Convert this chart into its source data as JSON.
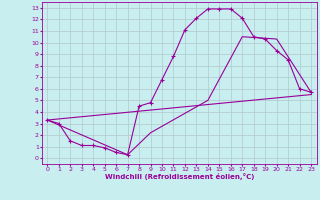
{
  "xlabel": "Windchill (Refroidissement éolien,°C)",
  "xlim": [
    -0.5,
    23.5
  ],
  "ylim": [
    -0.5,
    13.5
  ],
  "xticks": [
    0,
    1,
    2,
    3,
    4,
    5,
    6,
    7,
    8,
    9,
    10,
    11,
    12,
    13,
    14,
    15,
    16,
    17,
    18,
    19,
    20,
    21,
    22,
    23
  ],
  "yticks": [
    0,
    1,
    2,
    3,
    4,
    5,
    6,
    7,
    8,
    9,
    10,
    11,
    12,
    13
  ],
  "bg_color": "#c8eef0",
  "line_color": "#990099",
  "grid_color": "#b0c8cc",
  "line1_x": [
    0,
    1,
    2,
    3,
    4,
    5,
    6,
    7,
    8,
    9,
    10,
    11,
    12,
    13,
    14,
    15,
    16,
    17,
    18,
    19,
    20,
    21,
    22,
    23
  ],
  "line1_y": [
    3.3,
    3.0,
    1.5,
    1.1,
    1.1,
    0.9,
    0.5,
    0.3,
    4.5,
    4.8,
    6.8,
    8.8,
    11.1,
    12.1,
    12.9,
    12.9,
    12.9,
    12.1,
    10.5,
    10.3,
    9.3,
    8.5,
    6.0,
    5.7
  ],
  "line2_x": [
    0,
    23
  ],
  "line2_y": [
    3.3,
    5.5
  ],
  "line3_x": [
    0,
    7,
    9,
    14,
    17,
    20,
    23
  ],
  "line3_y": [
    3.3,
    0.3,
    2.2,
    5.0,
    10.5,
    10.3,
    5.7
  ]
}
